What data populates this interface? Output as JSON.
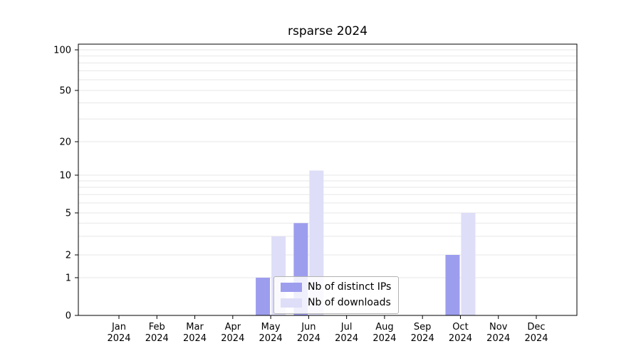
{
  "chart_data": {
    "type": "bar",
    "title": "rsparse 2024",
    "categories": [
      "Jan 2024",
      "Feb 2024",
      "Mar 2024",
      "Apr 2024",
      "May 2024",
      "Jun 2024",
      "Jul 2024",
      "Aug 2024",
      "Sep 2024",
      "Oct 2024",
      "Nov 2024",
      "Dec 2024"
    ],
    "series": [
      {
        "name": "Nb of distinct IPs",
        "color": "#9d9dee",
        "values": [
          0,
          0,
          0,
          0,
          1,
          4,
          0,
          0,
          0,
          2,
          0,
          0
        ]
      },
      {
        "name": "Nb of downloads",
        "color": "#dedef8",
        "values": [
          0,
          0,
          0,
          0,
          3,
          11,
          0,
          0,
          0,
          5,
          0,
          0
        ]
      }
    ],
    "yticks": [
      0,
      1,
      2,
      5,
      10,
      20,
      50,
      100
    ],
    "ylim": [
      0,
      100
    ],
    "scale": "log-like",
    "grid": true,
    "gridline_values": [
      1,
      2,
      3,
      4,
      5,
      6,
      7,
      8,
      9,
      10,
      20,
      30,
      40,
      50,
      60,
      70,
      80,
      90,
      100
    ],
    "legend": {
      "position": "inside-bottom-center",
      "entries": [
        "Nb of distinct IPs",
        "Nb of downloads"
      ]
    }
  },
  "colors": {
    "grid": "#e7e7e7",
    "axis": "#000000",
    "tick_label": "#000000",
    "legend_border": "#b3b3b3"
  }
}
